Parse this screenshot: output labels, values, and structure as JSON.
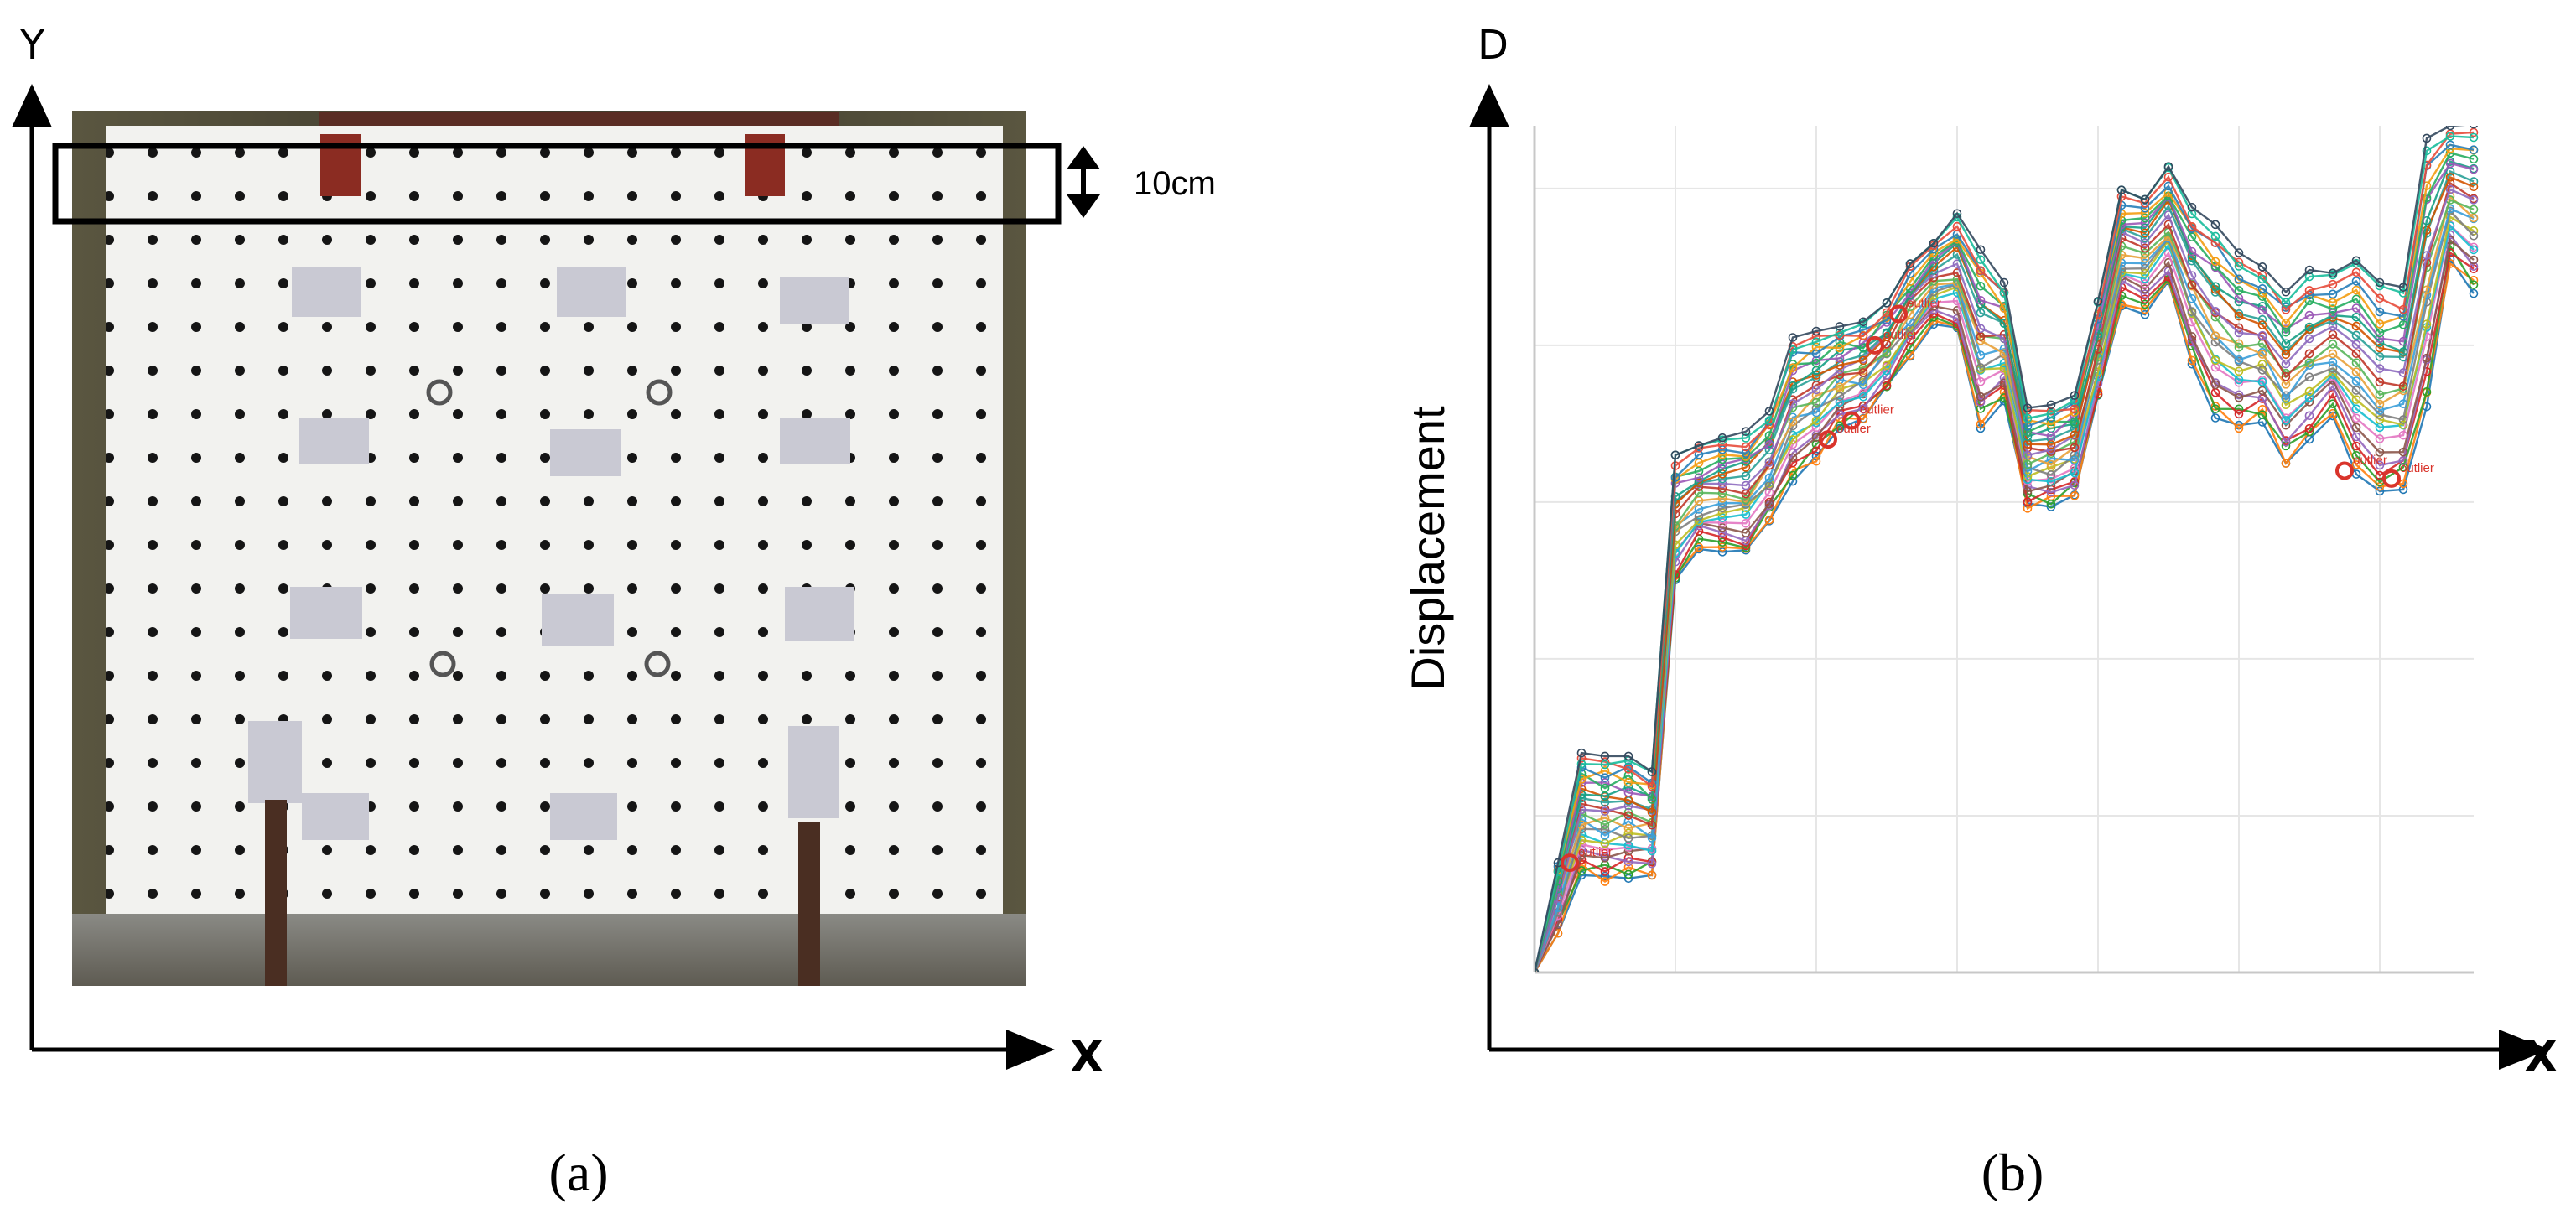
{
  "panel_a": {
    "y_axis_label": "Y",
    "x_axis_label": "X",
    "dimension_label": "10cm",
    "caption": "(a)"
  },
  "panel_b": {
    "y_axis_label": "D",
    "x_axis_label": "X",
    "ylabel": "Displacement",
    "caption": "(b)",
    "outlier_label": "outlier"
  },
  "colors": {
    "axis": "#000000",
    "grid": "#e6e6e6",
    "wall": "#f2f2ef",
    "frame": "#4a4535",
    "outlier": "#d9342b"
  },
  "chart_data": {
    "type": "line",
    "xlabel": "",
    "ylabel": "Displacement",
    "x": [
      0,
      1,
      2,
      3,
      4,
      5,
      6,
      7,
      8,
      9,
      10,
      11,
      12,
      13,
      14,
      15,
      16,
      17,
      18,
      19,
      20,
      21,
      22,
      23,
      24,
      25,
      26,
      27,
      28,
      29,
      30,
      31,
      32,
      33,
      34,
      35,
      36,
      37,
      38,
      39,
      40
    ],
    "series_envelope": {
      "upper": [
        0,
        0.7,
        1.4,
        1.38,
        1.38,
        1.28,
        3.3,
        3.36,
        3.41,
        3.45,
        3.58,
        4.05,
        4.09,
        4.12,
        4.15,
        4.27,
        4.52,
        4.65,
        4.84,
        4.61,
        4.4,
        3.6,
        3.62,
        3.68,
        4.28,
        4.99,
        4.93,
        5.14,
        4.88,
        4.77,
        4.59,
        4.5,
        4.34,
        4.48,
        4.46,
        4.54,
        4.4,
        4.37,
        5.32,
        5.4,
        5.41
      ],
      "median": [
        0,
        0.55,
        1.0,
        0.98,
        0.98,
        0.99,
        2.78,
        2.96,
        3.06,
        3.13,
        3.22,
        3.77,
        3.93,
        4.02,
        4.1,
        4.16,
        4.19,
        4.23,
        4.29,
        4.02,
        4.13,
        3.39,
        3.33,
        3.4,
        3.88,
        4.62,
        4.53,
        4.94,
        4.55,
        4.43,
        4.03,
        3.9,
        3.83,
        4.07,
        4.07,
        3.86,
        3.7,
        3.7,
        4.59,
        4.95,
        5.28
      ],
      "lower": [
        0,
        0.25,
        0.62,
        0.58,
        0.6,
        0.62,
        2.47,
        2.7,
        2.68,
        2.66,
        2.88,
        3.13,
        3.26,
        3.47,
        3.53,
        3.71,
        3.93,
        4.13,
        4.08,
        3.47,
        3.64,
        2.96,
        2.97,
        3.04,
        3.65,
        4.25,
        4.19,
        4.38,
        3.88,
        3.53,
        3.46,
        3.51,
        3.24,
        3.37,
        3.55,
        3.17,
        3.04,
        3.08,
        3.6,
        4.52,
        4.33
      ]
    },
    "series_count": 25,
    "outliers": [
      {
        "x": 1.5,
        "y": 0.7
      },
      {
        "x": 12.5,
        "y": 3.4
      },
      {
        "x": 13.5,
        "y": 3.52
      },
      {
        "x": 14.5,
        "y": 4.0
      },
      {
        "x": 15.5,
        "y": 4.2
      },
      {
        "x": 34.5,
        "y": 3.2
      },
      {
        "x": 36.5,
        "y": 3.15
      }
    ],
    "ylim": [
      0,
      5.4
    ],
    "xlim": [
      0,
      40
    ],
    "grid": true
  }
}
